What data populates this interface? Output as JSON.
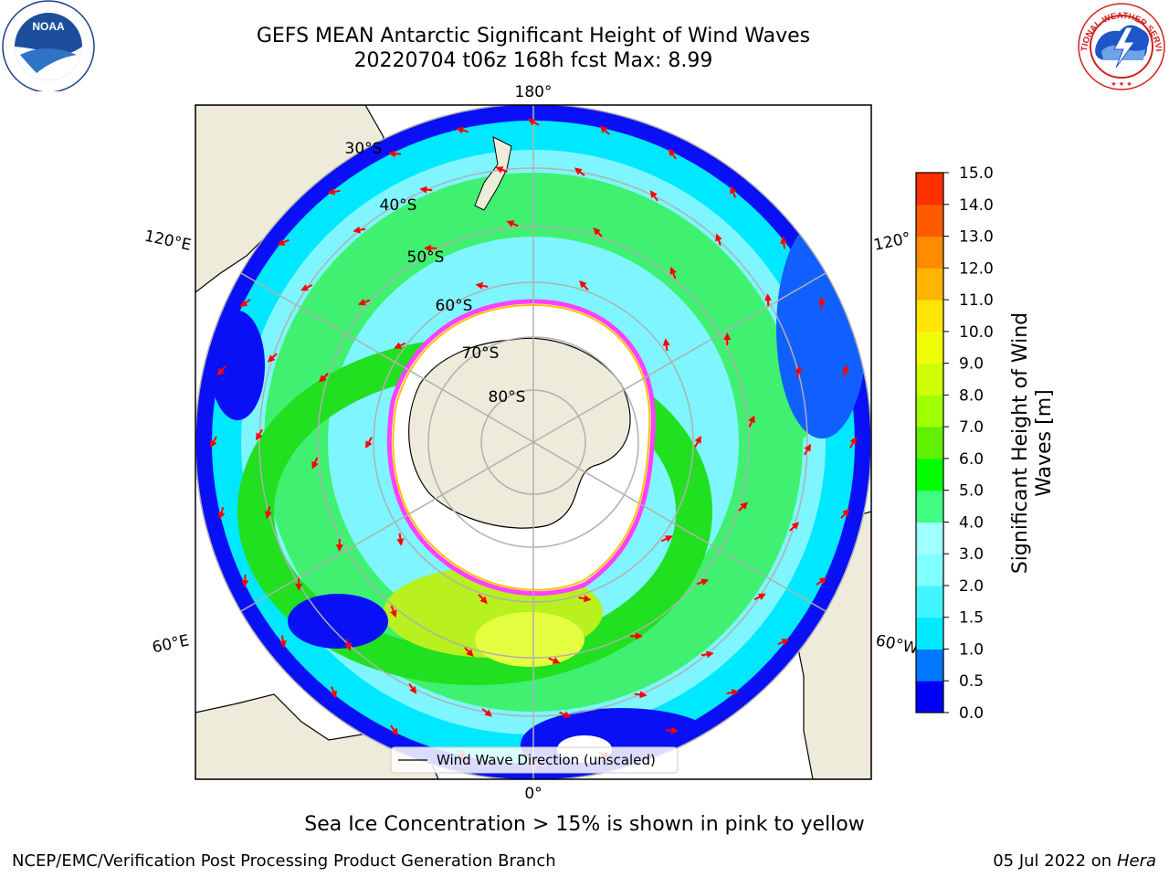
{
  "header": {
    "title_line1": "GEFS MEAN Antarctic Significant Height of Wind Waves",
    "title_line2": "20220704 t06z 168h fcst   Max: 8.99"
  },
  "logos": {
    "noaa": {
      "text": "NOAA",
      "ring_text": "NATIONAL OCEANIC AND ATMOSPHERIC ADMINISTRATION",
      "ring_text2": "U.S. DEPARTMENT OF COMMERCE"
    },
    "nws": {
      "ring_text": "NATIONAL WEATHER SERVICE"
    }
  },
  "map": {
    "longitude_labels": {
      "top": "180°",
      "bottom": "0°",
      "left_upper": "120°E",
      "left_lower": "60°E",
      "right_upper": "120°",
      "right_lower": "60°W"
    },
    "latitude_labels": [
      "30°S",
      "40°S",
      "50°S",
      "60°S",
      "70°S",
      "80°S"
    ],
    "legend_text": "Wind Wave Direction (unscaled)",
    "colors": {
      "land": "#efebdb",
      "ice": "#ffffff",
      "low_waves": "#0000ff",
      "arrow": "#ff0000"
    }
  },
  "colorbar": {
    "label": "Significant Height of Wind Waves [m]",
    "label_line1": "Significant Height of Wind",
    "label_line2": "Waves [m]",
    "ticks": [
      "0.0",
      "0.5",
      "1.0",
      "1.5",
      "2.0",
      "3.0",
      "4.0",
      "5.0",
      "6.0",
      "7.0",
      "8.0",
      "9.0",
      "10.0",
      "11.0",
      "12.0",
      "13.0",
      "14.0",
      "15.0"
    ],
    "colors": [
      "#0000ff",
      "#0078ff",
      "#00ebff",
      "#40f5ff",
      "#80ffff",
      "#a0ffff",
      "#40ff80",
      "#00ff00",
      "#60f000",
      "#a0ff00",
      "#d0ff00",
      "#f0ff00",
      "#ffe600",
      "#ffb400",
      "#ff8c00",
      "#ff5a00",
      "#ff3000"
    ]
  },
  "chart_data": {
    "type": "heatmap",
    "title": "GEFS MEAN Antarctic Significant Height of Wind Waves",
    "subtitle": "20220704 t06z 168h fcst   Max: 8.99",
    "variable": "Significant Height of Wind Waves [m]",
    "max": 8.99,
    "colorbar_range": [
      0,
      15
    ]
  },
  "caption": "Sea Ice Concentration > 15% is shown in pink to yellow",
  "footer": {
    "left": "NCEP/EMC/Verification Post Processing Product Generation Branch",
    "date": "05 Jul 2022 on",
    "machine": "Hera"
  }
}
